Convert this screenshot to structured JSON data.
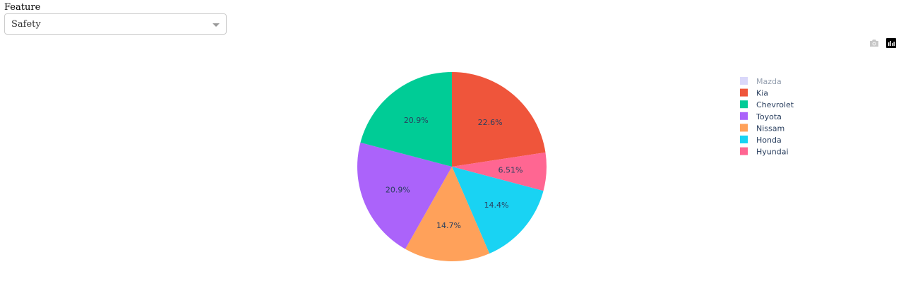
{
  "controls": {
    "feature_label": "Feature",
    "feature_value": "Safety"
  },
  "modebar": {
    "icons": [
      "camera-icon",
      "plotly-logo-icon"
    ]
  },
  "chart_data": {
    "type": "pie",
    "categories": [
      "Mazda",
      "Kia",
      "Chevrolet",
      "Toyota",
      "Nissam",
      "Honda",
      "Hyundai"
    ],
    "values": [
      0,
      22.6,
      20.9,
      20.9,
      14.7,
      14.4,
      6.51
    ],
    "labels": [
      "",
      "22.6%",
      "20.9%",
      "20.9%",
      "14.7%",
      "14.4%",
      "6.51%"
    ],
    "slice_order_clockwise_from_top": [
      "Kia",
      "Hyundai",
      "Honda",
      "Nissam",
      "Toyota",
      "Chevrolet"
    ],
    "colors": {
      "Mazda": "#b6b2f7",
      "Kia": "#ef553b",
      "Chevrolet": "#00cc96",
      "Toyota": "#ab63fa",
      "Nissam": "#ffa15a",
      "Honda": "#19d3f3",
      "Hyundai": "#ff6692"
    },
    "hidden_legend_items": [
      "Mazda"
    ],
    "legend_position": "right"
  }
}
